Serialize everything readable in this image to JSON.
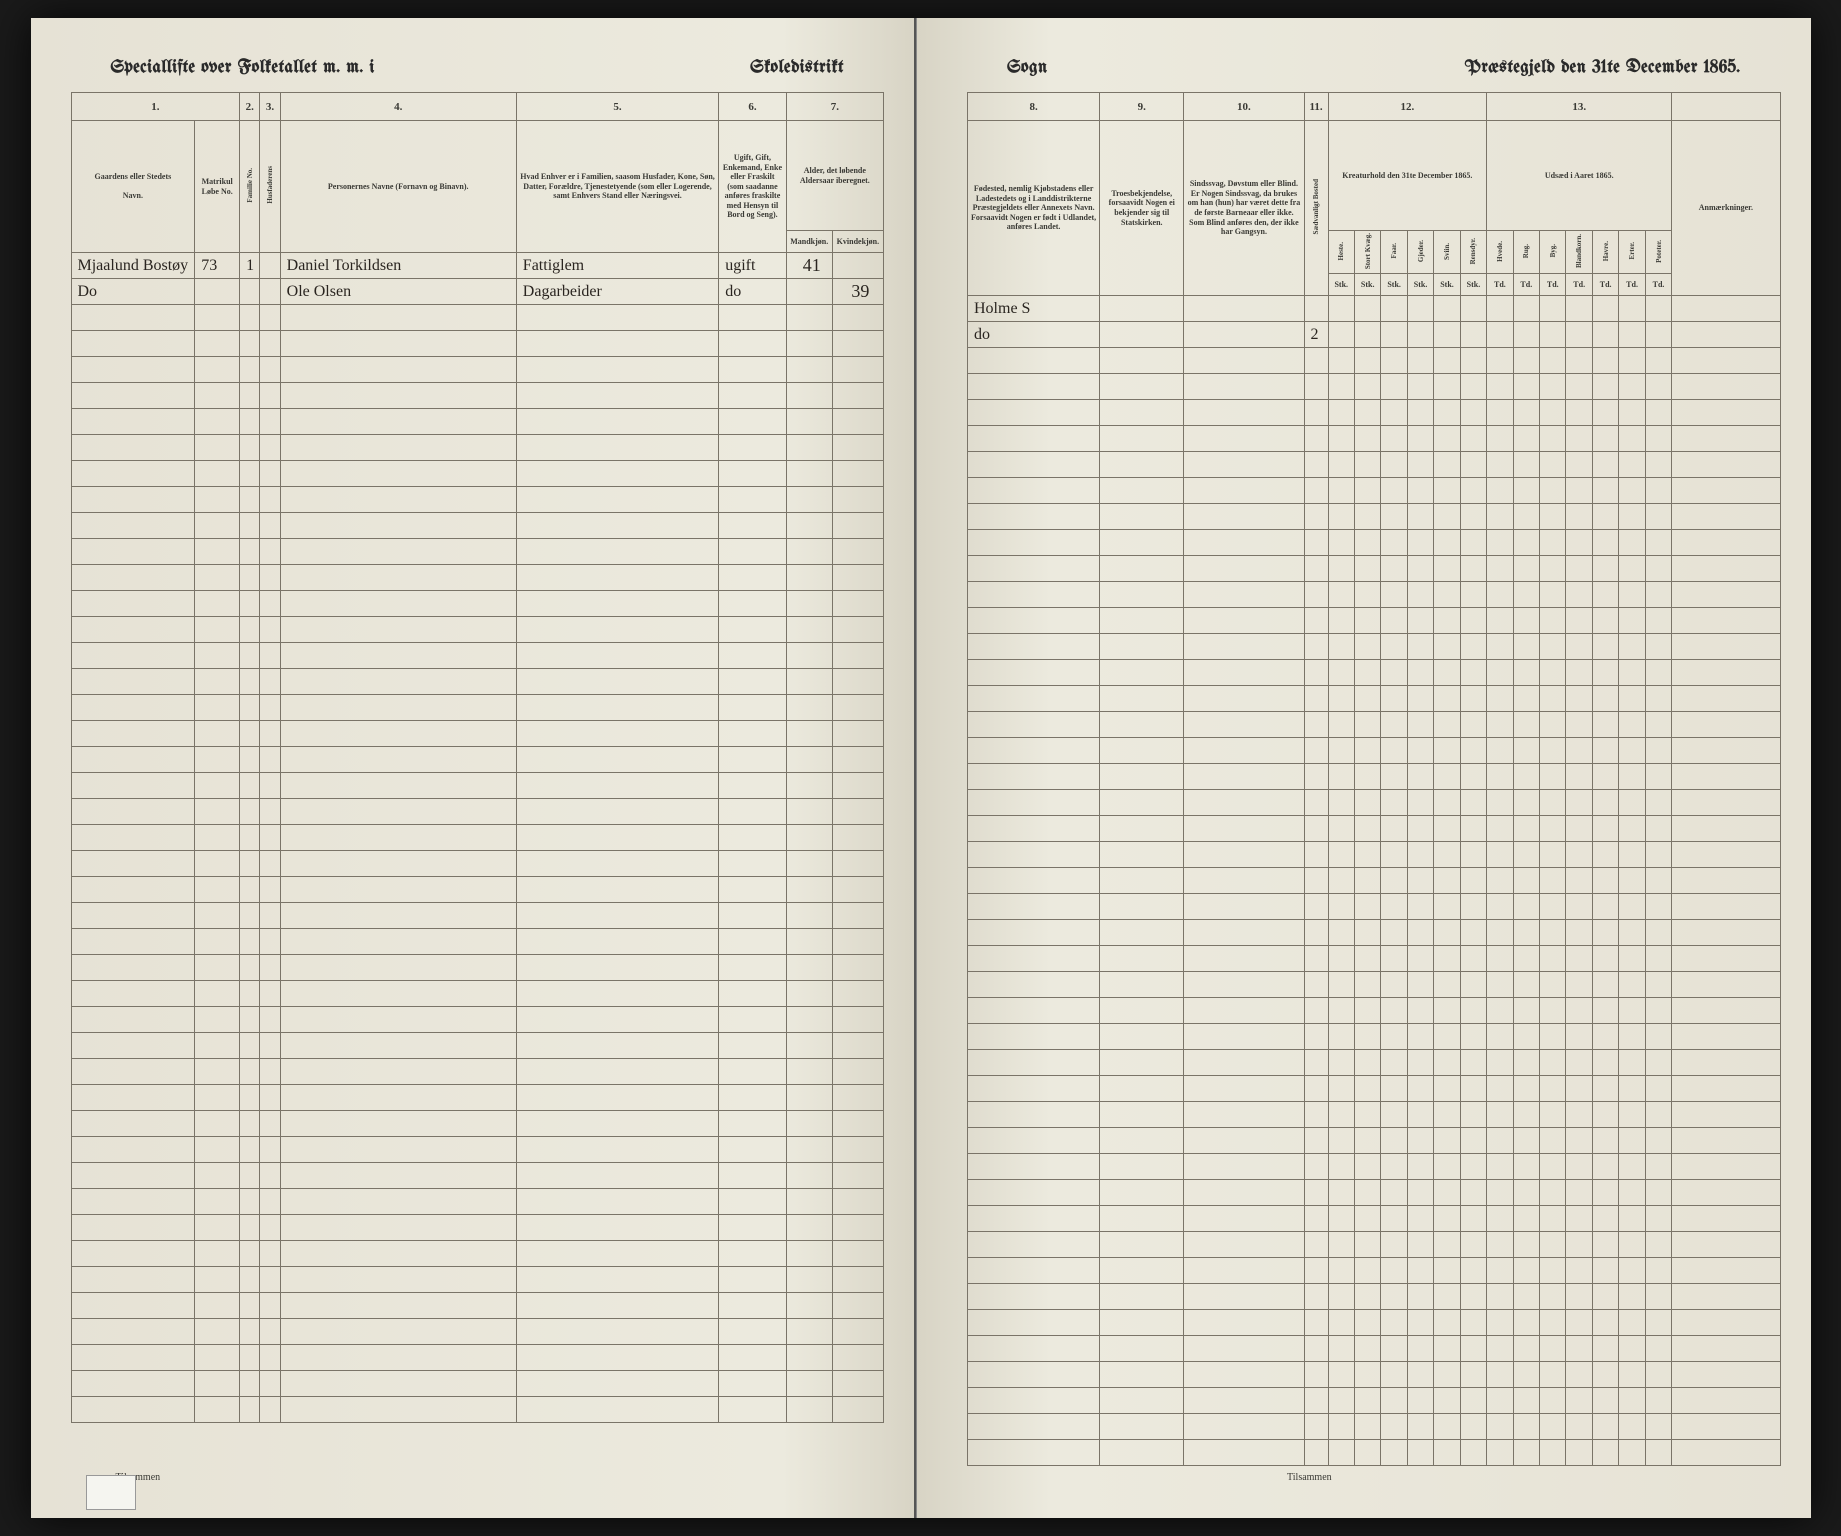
{
  "left": {
    "title_left": "Speciallifte over Folketallet m. m. i",
    "title_right": "Skoledistrikt",
    "colnums": [
      "1.",
      "2.",
      "3.",
      "4.",
      "5.",
      "6.",
      "7."
    ],
    "headers": {
      "col1_top": "Gaardens eller Stedets",
      "col1_bot": "Navn.",
      "col1b": "Matrikul Løbe No.",
      "col2": "",
      "col3": "",
      "col4": "Personernes Navne (Fornavn og Binavn).",
      "col5": "Hvad Enhver er i Familien, saasom Husfader, Kone, Søn, Datter, Forældre, Tjenestetyende (som eller Logerende, samt Enhvers Stand eller Næringsvei.",
      "col6": "Ugift, Gift, Enkemand, Enke eller Fraskilt (som saadanne anføres fraskilte med Hensyn til Bord og Seng).",
      "col7_top": "Alder, det løbende Aldersaar iberegnet.",
      "col7a": "Mandkjøn.",
      "col7b": "Kvindekjøn."
    },
    "rows": [
      {
        "c1": "Mjaalund Bostøy",
        "c1b": "73",
        "c2": "1",
        "c3": "",
        "c4": "Daniel Torkildsen",
        "c5": "Fattiglem",
        "c6": "ugift",
        "c7a": "41",
        "c7b": ""
      },
      {
        "c1": "Do",
        "c1b": "",
        "c2": "",
        "c3": "",
        "c4": "Ole Olsen",
        "c5": "Dagarbeider",
        "c6": "do",
        "c7a": "",
        "c7b": "39"
      }
    ],
    "footer": "Tilsammen"
  },
  "right": {
    "title_left": "Sogn",
    "title_right": "Præstegjeld den 31te December 1865.",
    "colnums": [
      "8.",
      "9.",
      "10.",
      "11.",
      "12.",
      "13."
    ],
    "headers": {
      "col8": "Fødested, nemlig Kjøbstadens eller Ladestedets og i Landdistrikterne Præstegjeldets eller Annexets Navn. Forsaavidt Nogen er født i Udlandet, anføres Landet.",
      "col9": "Troesbekjendelse, forsaavidt Nogen ei bekjender sig til Statskirken.",
      "col10": "Sindssvag, Døvstum eller Blind. Er Nogen Sindssvag, da brukes om han (hun) har været dette fra de første Barneaar eller ikke. Som Blind anføres den, der ikke har Gangsyn.",
      "col11": "",
      "col12_top": "Kreaturhold den 31te December 1865.",
      "col12_subs": [
        "Heste.",
        "Stort Kvæg.",
        "Faar.",
        "Gjeder.",
        "Sviin.",
        "Rensdyr."
      ],
      "col13_top": "Udsæd i Aaret 1865.",
      "col13_subs": [
        "Hvede.",
        "Rug.",
        "Byg.",
        "Blandkorn.",
        "Havre.",
        "Erter.",
        "Poteter."
      ],
      "col14": "Anmærkninger.",
      "unit": "Stk."
    },
    "rows": [
      {
        "c8": "Holme S",
        "c9": "",
        "c10": "",
        "c11": "",
        "cells": [
          "",
          "",
          "",
          "",
          "",
          "",
          "",
          "",
          "",
          "",
          "",
          "",
          ""
        ]
      },
      {
        "c8": "do",
        "c9": "",
        "c10": "",
        "c11": "2",
        "cells": [
          "",
          "",
          "",
          "",
          "",
          "",
          "",
          "",
          "",
          "",
          "",
          "",
          ""
        ]
      }
    ],
    "footer": "Tilsammen"
  },
  "empty_row_count": 43
}
